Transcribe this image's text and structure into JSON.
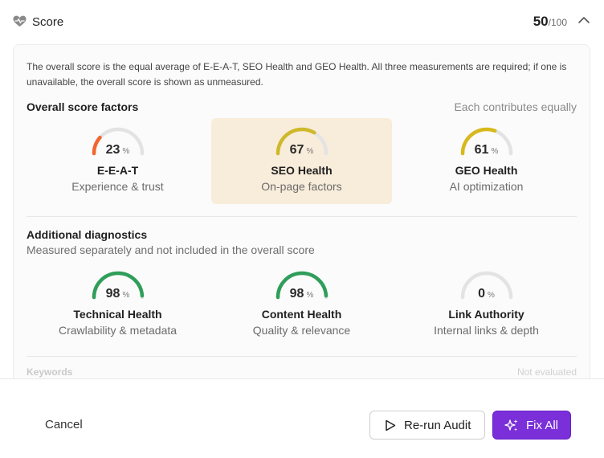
{
  "header": {
    "title": "Score",
    "score_value": "50",
    "score_denominator": "/100"
  },
  "description": "The overall score is the equal average of E-E-A-T, SEO Health and GEO Health. All three measurements are required; if one is unavailable, the overall score is shown as unmeasured.",
  "overall": {
    "title": "Overall score factors",
    "note": "Each contributes equally",
    "factors": [
      {
        "name": "E-E-A-T",
        "sub": "Experience & trust",
        "value": 23,
        "unit": "%",
        "color": "#f2672e",
        "highlighted": false
      },
      {
        "name": "SEO Health",
        "sub": "On-page factors",
        "value": 67,
        "unit": "%",
        "color": "#cfb92a",
        "highlighted": true
      },
      {
        "name": "GEO Health",
        "sub": "AI optimization",
        "value": 61,
        "unit": "%",
        "color": "#d8b91c",
        "highlighted": false
      }
    ]
  },
  "diagnostics": {
    "title": "Additional diagnostics",
    "subtitle": "Measured separately and not included in the overall score",
    "items": [
      {
        "name": "Technical Health",
        "sub": "Crawlability & metadata",
        "value": 98,
        "unit": "%",
        "color": "#2f9e5a"
      },
      {
        "name": "Content Health",
        "sub": "Quality & relevance",
        "value": 98,
        "unit": "%",
        "color": "#2f9e5a"
      },
      {
        "name": "Link Authority",
        "sub": "Internal links & depth",
        "value": 0,
        "unit": "%",
        "color": "#2f9e5a"
      }
    ]
  },
  "keywords": {
    "label": "Keywords",
    "status": "Not evaluated"
  },
  "footer": {
    "cancel_label": "Cancel",
    "rerun_label": "Re-run Audit",
    "fixall_label": "Fix All"
  },
  "colors": {
    "track": "#e3e3e3",
    "accent_purple": "#7a2fd9",
    "highlight_bg": "#f8ecda"
  }
}
